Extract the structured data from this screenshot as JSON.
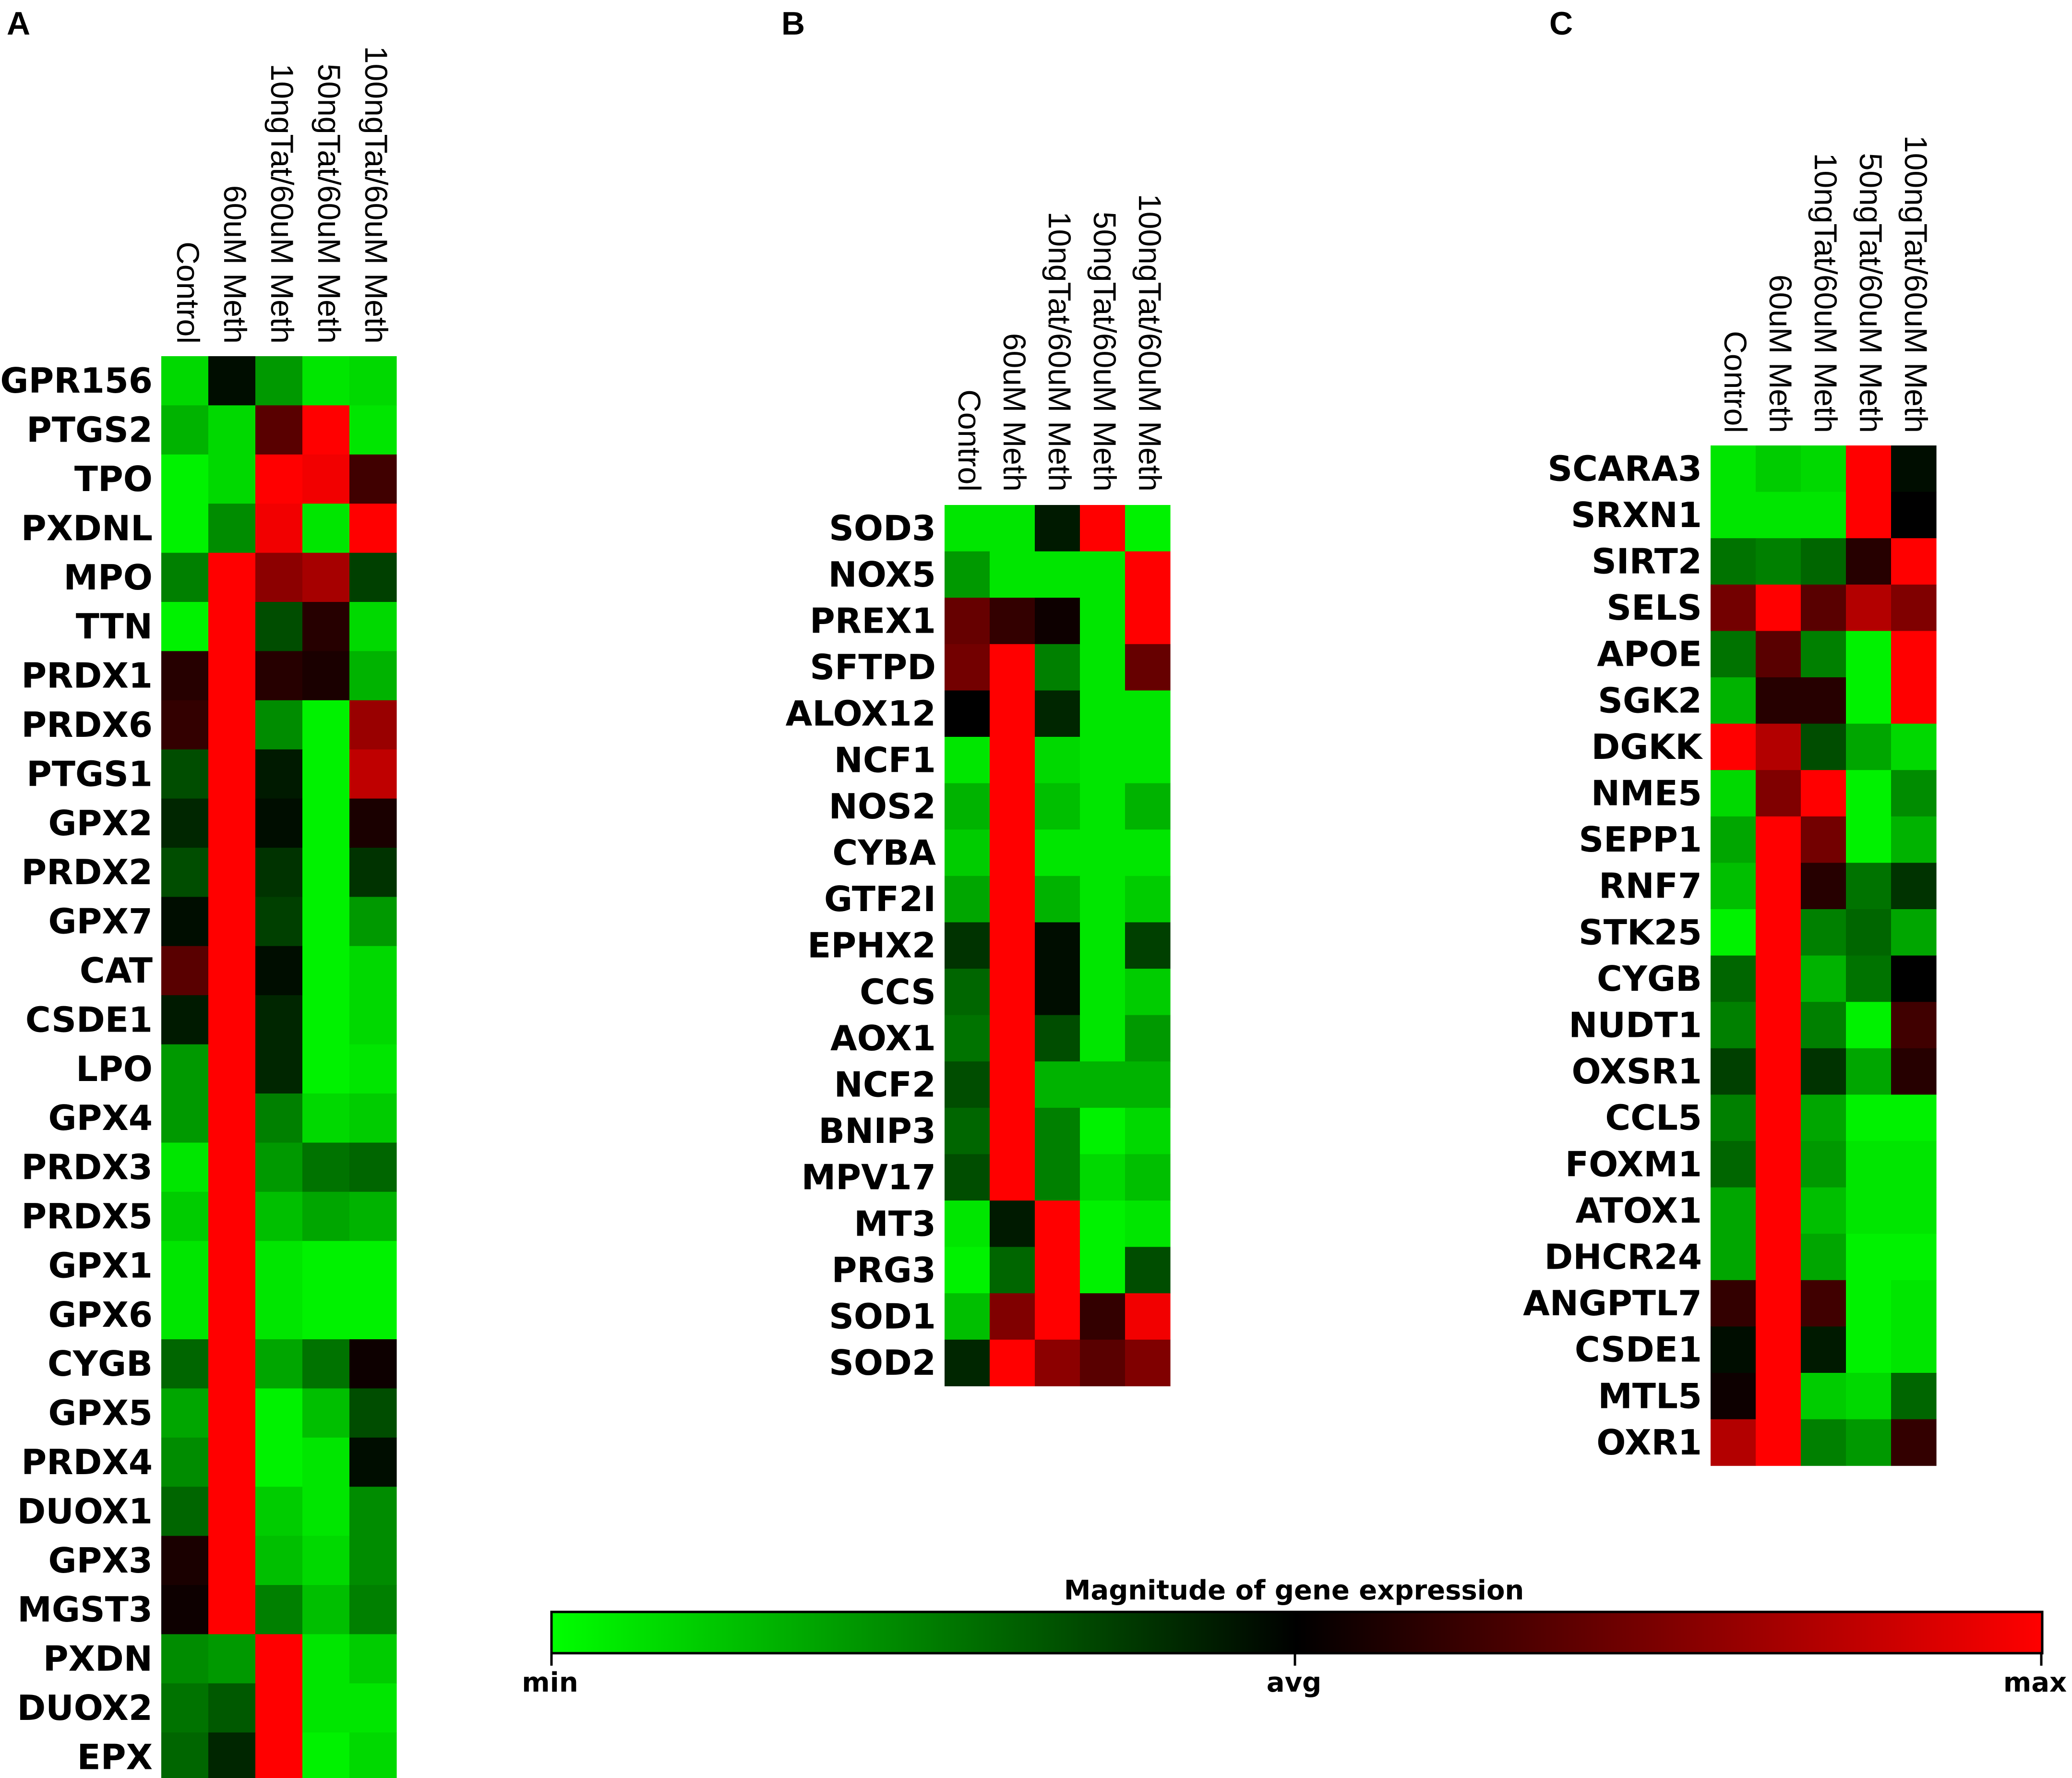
{
  "legend": {
    "title": "Magnitude of gene expression",
    "min_label": "min",
    "avg_label": "avg",
    "max_label": "max",
    "colors": {
      "min": "#00ff00",
      "avg": "#000000",
      "max": "#ff0000"
    }
  },
  "chart_data": [
    {
      "type": "heatmap",
      "panel": "A",
      "columns": [
        "Control",
        "60uM Meth",
        "10ngTat/60uM Meth",
        "50ngTat/60uM Meth",
        "100ngTat/60uM Meth"
      ],
      "rows": [
        "GPR156",
        "PTGS2",
        "TPO",
        "PXDNL",
        "MPO",
        "TTN",
        "PRDX1",
        "PRDX6",
        "PTGS1",
        "GPX2",
        "PRDX2",
        "GPX7",
        "CAT",
        "CSDE1",
        "LPO",
        "GPX4",
        "PRDX3",
        "PRDX5",
        "GPX1",
        "GPX6",
        "CYGB",
        "GPX5",
        "PRDX4",
        "DUOX1",
        "GPX3",
        "MGST3",
        "PXDN",
        "DUOX2",
        "EPX"
      ],
      "value_range": [
        -1,
        1
      ],
      "values": [
        [
          -0.85,
          -0.05,
          -0.6,
          -0.9,
          -0.85
        ],
        [
          -0.7,
          -0.85,
          0.35,
          1.0,
          -0.9
        ],
        [
          -0.95,
          -0.85,
          1.0,
          0.95,
          0.25
        ],
        [
          -0.95,
          -0.55,
          0.95,
          -0.9,
          1.0
        ],
        [
          -0.5,
          1.0,
          0.55,
          0.65,
          -0.25
        ],
        [
          -0.95,
          1.0,
          -0.3,
          0.15,
          -0.85
        ],
        [
          0.15,
          1.0,
          0.15,
          0.1,
          -0.7
        ],
        [
          0.2,
          1.0,
          -0.55,
          -0.95,
          0.6
        ],
        [
          -0.3,
          1.0,
          -0.1,
          -0.95,
          0.75
        ],
        [
          -0.15,
          1.0,
          -0.05,
          -0.95,
          0.1
        ],
        [
          -0.3,
          1.0,
          -0.2,
          -0.95,
          -0.2
        ],
        [
          -0.05,
          1.0,
          -0.25,
          -0.95,
          -0.6
        ],
        [
          0.35,
          1.0,
          -0.05,
          -0.95,
          -0.85
        ],
        [
          -0.1,
          1.0,
          -0.15,
          -0.95,
          -0.85
        ],
        [
          -0.6,
          1.0,
          -0.15,
          -0.95,
          -0.9
        ],
        [
          -0.6,
          1.0,
          -0.5,
          -0.85,
          -0.8
        ],
        [
          -0.9,
          1.0,
          -0.6,
          -0.45,
          -0.4
        ],
        [
          -0.8,
          1.0,
          -0.75,
          -0.65,
          -0.7
        ],
        [
          -0.9,
          1.0,
          -0.9,
          -0.95,
          -0.95
        ],
        [
          -0.9,
          1.0,
          -0.9,
          -0.95,
          -0.95
        ],
        [
          -0.4,
          1.0,
          -0.65,
          -0.45,
          0.05
        ],
        [
          -0.65,
          1.0,
          -0.95,
          -0.75,
          -0.3
        ],
        [
          -0.55,
          1.0,
          -0.95,
          -0.9,
          -0.05
        ],
        [
          -0.4,
          1.0,
          -0.8,
          -0.9,
          -0.55
        ],
        [
          0.1,
          1.0,
          -0.75,
          -0.85,
          -0.55
        ],
        [
          0.05,
          1.0,
          -0.5,
          -0.75,
          -0.5
        ],
        [
          -0.55,
          -0.6,
          1.0,
          -0.9,
          -0.8
        ],
        [
          -0.45,
          -0.35,
          1.0,
          -0.9,
          -0.9
        ],
        [
          -0.4,
          -0.15,
          1.0,
          -0.95,
          -0.85
        ]
      ]
    },
    {
      "type": "heatmap",
      "panel": "B",
      "columns": [
        "Control",
        "60uM Meth",
        "10ngTat/60uM Meth",
        "50ngTat/60uM Meth",
        "100ngTat/60uM Meth"
      ],
      "rows": [
        "SOD3",
        "NOX5",
        "PREX1",
        "SFTPD",
        "ALOX12",
        "NCF1",
        "NOS2",
        "CYBA",
        "GTF2I",
        "EPHX2",
        "CCS",
        "AOX1",
        "NCF2",
        "BNIP3",
        "MPV17",
        "MT3",
        "PRG3",
        "SOD1",
        "SOD2"
      ],
      "value_range": [
        -1,
        1
      ],
      "values": [
        [
          -0.9,
          -0.9,
          -0.1,
          1.0,
          -0.95
        ],
        [
          -0.6,
          -0.9,
          -0.9,
          -0.9,
          1.0
        ],
        [
          0.4,
          0.2,
          0.05,
          -0.9,
          1.0
        ],
        [
          0.45,
          1.0,
          -0.5,
          -0.9,
          0.4
        ],
        [
          0.0,
          1.0,
          -0.15,
          -0.9,
          -0.9
        ],
        [
          -0.9,
          1.0,
          -0.85,
          -0.9,
          -0.9
        ],
        [
          -0.7,
          1.0,
          -0.75,
          -0.9,
          -0.7
        ],
        [
          -0.8,
          1.0,
          -0.9,
          -0.9,
          -0.9
        ],
        [
          -0.65,
          1.0,
          -0.7,
          -0.9,
          -0.8
        ],
        [
          -0.2,
          1.0,
          -0.05,
          -0.9,
          -0.25
        ],
        [
          -0.4,
          1.0,
          -0.05,
          -0.9,
          -0.8
        ],
        [
          -0.45,
          1.0,
          -0.3,
          -0.9,
          -0.6
        ],
        [
          -0.3,
          1.0,
          -0.7,
          -0.7,
          -0.7
        ],
        [
          -0.4,
          1.0,
          -0.5,
          -0.95,
          -0.85
        ],
        [
          -0.3,
          1.0,
          -0.5,
          -0.85,
          -0.75
        ],
        [
          -0.9,
          -0.1,
          1.0,
          -0.95,
          -0.9
        ],
        [
          -0.95,
          -0.4,
          1.0,
          -0.95,
          -0.3
        ],
        [
          -0.75,
          0.5,
          1.0,
          0.2,
          0.95
        ],
        [
          -0.15,
          1.0,
          0.55,
          0.35,
          0.5
        ]
      ]
    },
    {
      "type": "heatmap",
      "panel": "C",
      "columns": [
        "Control",
        "60uM Meth",
        "10ngTat/60uM Meth",
        "50ngTat/60uM Meth",
        "100ngTat/60uM Meth"
      ],
      "rows": [
        "SCARA3",
        "SRXN1",
        "SIRT2",
        "SELS",
        "APOE",
        "SGK2",
        "DGKK",
        "NME5",
        "SEPP1",
        "RNF7",
        "STK25",
        "CYGB",
        "NUDT1",
        "OXSR1",
        "CCL5",
        "FOXM1",
        "ATOX1",
        "DHCR24",
        "ANGPTL7",
        "CSDE1",
        "MTL5",
        "OXR1"
      ],
      "value_range": [
        -1,
        1
      ],
      "values": [
        [
          -0.9,
          -0.8,
          -0.85,
          1.0,
          -0.05
        ],
        [
          -0.9,
          -0.9,
          -0.9,
          1.0,
          0.0
        ],
        [
          -0.45,
          -0.5,
          -0.4,
          0.15,
          1.0
        ],
        [
          0.45,
          1.0,
          0.35,
          0.7,
          0.5
        ],
        [
          -0.45,
          0.35,
          -0.5,
          -0.95,
          1.0
        ],
        [
          -0.7,
          0.15,
          0.15,
          -0.95,
          1.0
        ],
        [
          1.0,
          0.7,
          -0.3,
          -0.65,
          -0.85
        ],
        [
          -0.85,
          0.5,
          1.0,
          -0.95,
          -0.55
        ],
        [
          -0.65,
          1.0,
          0.45,
          -0.95,
          -0.7
        ],
        [
          -0.75,
          1.0,
          0.15,
          -0.45,
          -0.2
        ],
        [
          -0.95,
          1.0,
          -0.5,
          -0.4,
          -0.65
        ],
        [
          -0.4,
          1.0,
          -0.7,
          -0.45,
          0.0
        ],
        [
          -0.5,
          1.0,
          -0.5,
          -0.95,
          0.25
        ],
        [
          -0.25,
          1.0,
          -0.2,
          -0.65,
          0.15
        ],
        [
          -0.5,
          1.0,
          -0.65,
          -0.95,
          -0.95
        ],
        [
          -0.4,
          1.0,
          -0.6,
          -0.9,
          -0.9
        ],
        [
          -0.65,
          1.0,
          -0.75,
          -0.9,
          -0.9
        ],
        [
          -0.65,
          1.0,
          -0.65,
          -0.95,
          -0.95
        ],
        [
          0.2,
          1.0,
          0.25,
          -0.95,
          -0.9
        ],
        [
          -0.05,
          1.0,
          -0.1,
          -0.95,
          -0.9
        ],
        [
          0.05,
          1.0,
          -0.8,
          -0.85,
          -0.4
        ],
        [
          0.7,
          1.0,
          -0.5,
          -0.6,
          0.2
        ]
      ]
    }
  ]
}
